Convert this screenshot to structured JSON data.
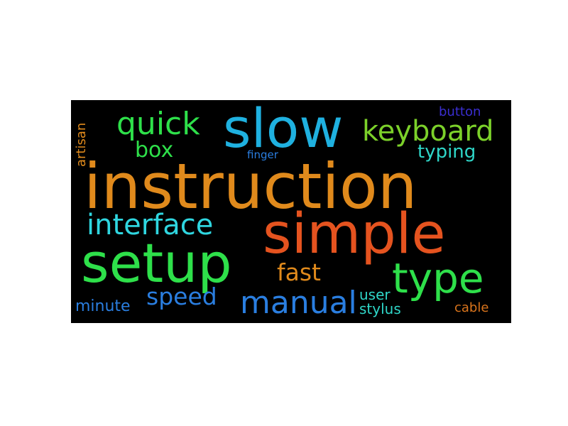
{
  "word_cloud": {
    "background": "#000000",
    "words": [
      {
        "id": "instruction",
        "text": "instruction",
        "color": "#e08a1c"
      },
      {
        "id": "simple",
        "text": "simple",
        "color": "#e5531f"
      },
      {
        "id": "slow",
        "text": "slow",
        "color": "#1fb1e0"
      },
      {
        "id": "setup",
        "text": "setup",
        "color": "#2ee04a"
      },
      {
        "id": "type",
        "text": "type",
        "color": "#2ee04a"
      },
      {
        "id": "keyboard",
        "text": "keyboard",
        "color": "#7cd12a"
      },
      {
        "id": "quick",
        "text": "quick",
        "color": "#2ee04a"
      },
      {
        "id": "interface",
        "text": "interface",
        "color": "#2fd6e0"
      },
      {
        "id": "manual",
        "text": "manual",
        "color": "#2a7ee0"
      },
      {
        "id": "speed",
        "text": "speed",
        "color": "#2a7ee0"
      },
      {
        "id": "fast",
        "text": "fast",
        "color": "#e08a1c"
      },
      {
        "id": "box",
        "text": "box",
        "color": "#2ee04a"
      },
      {
        "id": "typing",
        "text": "typing",
        "color": "#2fd6c8"
      },
      {
        "id": "minute",
        "text": "minute",
        "color": "#2a7ee0"
      },
      {
        "id": "user",
        "text": "user",
        "color": "#2fd6c8"
      },
      {
        "id": "stylus",
        "text": "stylus",
        "color": "#2fd6c8"
      },
      {
        "id": "cable",
        "text": "cable",
        "color": "#d9741c"
      },
      {
        "id": "button",
        "text": "button",
        "color": "#3a2ed0"
      },
      {
        "id": "finger",
        "text": "finger",
        "color": "#2a7ee0"
      },
      {
        "id": "artisan",
        "text": "artisan",
        "color": "#e08a1c"
      }
    ]
  }
}
